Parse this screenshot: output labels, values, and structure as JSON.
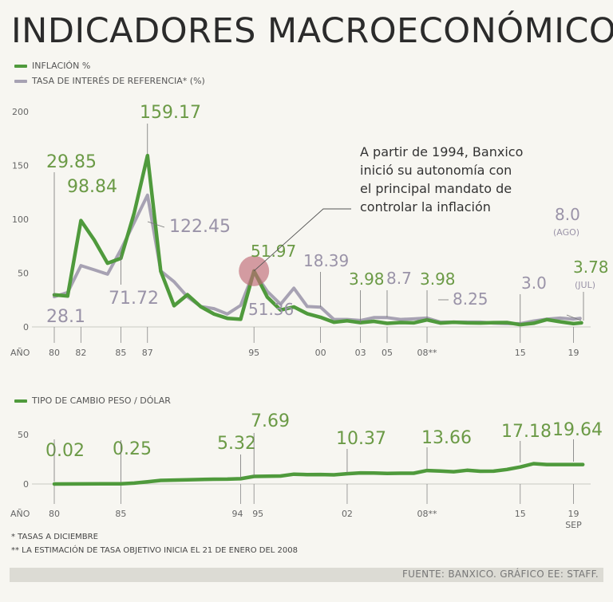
{
  "title": "INDICADORES MACROECONÓMICOS",
  "legend_top": [
    {
      "label": "INFLACIÓN %",
      "color": "#4f9a3c"
    },
    {
      "label": "TASA DE INTERÉS DE REFERENCIA* (%)",
      "color": "#a7a2b3"
    }
  ],
  "legend_bottom": {
    "label": "TIPO DE CAMBIO PESO / DÓLAR",
    "color": "#4f9a3c"
  },
  "colors": {
    "inflation": "#4f9a3c",
    "rate": "#a7a2b3",
    "label_green": "#6b9a46",
    "label_gray": "#9a93a8",
    "highlight": "#c06a76"
  },
  "chart_data": [
    {
      "type": "line",
      "id": "inflation_rates",
      "xlabel": "AÑO",
      "ylim": [
        0,
        200
      ],
      "yticks": [
        0,
        50,
        100,
        150,
        200
      ],
      "xtick_labels": [
        "80",
        "82",
        "85",
        "87",
        "95",
        "00",
        "03",
        "05",
        "08**",
        "15",
        "19"
      ],
      "x_range": [
        1980,
        2019.75
      ],
      "series": [
        {
          "name": "INFLACIÓN %",
          "color": "#4f9a3c",
          "x": [
            1980,
            1981,
            1982,
            1983,
            1984,
            1985,
            1986,
            1987,
            1988,
            1989,
            1990,
            1991,
            1992,
            1993,
            1994,
            1995,
            1996,
            1997,
            1998,
            1999,
            2000,
            2001,
            2002,
            2003,
            2004,
            2005,
            2006,
            2007,
            2008,
            2009,
            2010,
            2011,
            2012,
            2013,
            2014,
            2015,
            2016,
            2017,
            2018,
            2019,
            2019.6
          ],
          "values": [
            29.85,
            28.7,
            98.84,
            80.8,
            59.2,
            63.7,
            105.7,
            159.17,
            51.7,
            19.7,
            29.9,
            18.8,
            11.9,
            8.0,
            7.1,
            51.97,
            27.7,
            15.7,
            18.6,
            12.3,
            9.0,
            4.4,
            5.7,
            3.98,
            5.2,
            3.3,
            4.1,
            3.8,
            6.5,
            3.6,
            4.4,
            3.8,
            3.6,
            4.0,
            4.1,
            2.1,
            3.4,
            6.8,
            4.8,
            3.0,
            3.78
          ]
        },
        {
          "name": "TASA DE INTERÉS DE REFERENCIA* (%)",
          "color": "#a7a2b3",
          "x": [
            1980,
            1981,
            1982,
            1983,
            1984,
            1985,
            1986,
            1987,
            1988,
            1989,
            1990,
            1991,
            1992,
            1993,
            1994,
            1995,
            1996,
            1997,
            1998,
            1999,
            2000,
            2001,
            2002,
            2003,
            2004,
            2005,
            2006,
            2007,
            2008,
            2009,
            2010,
            2011,
            2012,
            2013,
            2014,
            2015,
            2016,
            2017,
            2018,
            2019,
            2019.5
          ],
          "values": [
            28.1,
            32,
            57,
            53,
            49,
            71.72,
            97,
            122.45,
            52,
            42,
            28,
            19,
            17,
            12,
            20,
            51.36,
            33,
            21,
            36,
            19,
            18.39,
            7,
            7,
            6,
            8.7,
            8.7,
            7,
            7.5,
            8.25,
            4.5,
            4.5,
            4.5,
            4.5,
            3.5,
            3,
            3.0,
            5.5,
            7.25,
            8.25,
            7.25,
            8.0
          ]
        }
      ],
      "annotations": [
        {
          "text": "29.85",
          "series": "inflation"
        },
        {
          "text": "98.84",
          "series": "inflation"
        },
        {
          "text": "159.17",
          "series": "inflation"
        },
        {
          "text": "122.45",
          "series": "rate"
        },
        {
          "text": "71.72",
          "series": "rate"
        },
        {
          "text": "28.1",
          "series": "rate"
        },
        {
          "text": "51.97",
          "series": "inflation"
        },
        {
          "text": "51.36",
          "series": "rate"
        },
        {
          "text": "18.39",
          "series": "rate"
        },
        {
          "text": "3.98",
          "series": "inflation"
        },
        {
          "text": "8.7",
          "series": "rate"
        },
        {
          "text": "3.98",
          "series": "inflation"
        },
        {
          "text": "8.25",
          "series": "rate"
        },
        {
          "text": "3.0",
          "series": "rate"
        },
        {
          "text": "8.0",
          "series": "rate"
        },
        {
          "text": "(AGO)",
          "series": "rate"
        },
        {
          "text": "3.78",
          "series": "inflation"
        },
        {
          "text": "(JUL)",
          "series": "inflation"
        }
      ],
      "callout": [
        "A partir de 1994, Banxico",
        "inició su autonomía con",
        "el principal mandato de",
        "controlar la inflación"
      ]
    },
    {
      "type": "line",
      "id": "exchange_rate",
      "title": "TIPO DE CAMBIO PESO / DÓLAR",
      "xlabel": "AÑO",
      "ylim": [
        0,
        50
      ],
      "yticks": [
        0,
        50
      ],
      "xtick_labels": [
        "80",
        "85",
        "94",
        "95",
        "02",
        "08**",
        "15",
        "19",
        "SEP"
      ],
      "x_range": [
        1980,
        2019.75
      ],
      "series": [
        {
          "name": "TIPO DE CAMBIO PESO / DÓLAR",
          "color": "#4f9a3c",
          "x": [
            1980,
            1985,
            1986,
            1987,
            1988,
            1990,
            1992,
            1993,
            1994,
            1995,
            1996,
            1997,
            1998,
            1999,
            2000,
            2001,
            2002,
            2003,
            2004,
            2005,
            2006,
            2007,
            2008,
            2009,
            2010,
            2011,
            2012,
            2013,
            2014,
            2015,
            2016,
            2017,
            2018,
            2019,
            2019.7
          ],
          "values": [
            0.02,
            0.25,
            0.9,
            2.2,
            3.6,
            4.3,
            4.8,
            4.9,
            5.32,
            7.69,
            7.8,
            8.1,
            9.9,
            9.5,
            9.6,
            9.3,
            10.37,
            11.2,
            11.1,
            10.7,
            10.9,
            10.9,
            13.66,
            13.1,
            12.4,
            13.9,
            12.9,
            13.0,
            14.7,
            17.18,
            20.6,
            19.7,
            19.7,
            19.64,
            19.64
          ]
        }
      ],
      "annotations": [
        "0.02",
        "0.25",
        "5.32",
        "7.69",
        "10.37",
        "13.66",
        "17.18",
        "19.64"
      ]
    }
  ],
  "notes": [
    "* TASAS A DICIEMBRE",
    "** LA ESTIMACIÓN DE TASA OBJETIVO INICIA EL 21 DE ENERO DEL 2008"
  ],
  "source": "FUENTE: BANXICO. GRÁFICO EE: STAFF."
}
